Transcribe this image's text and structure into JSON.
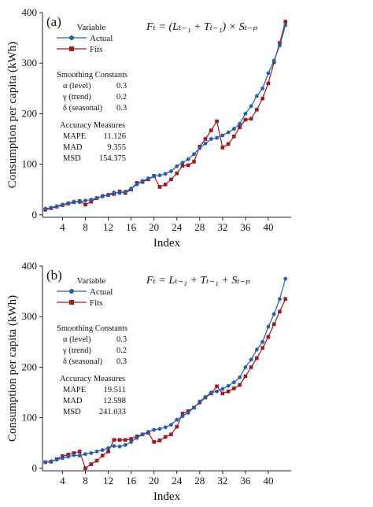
{
  "chart_data": [
    {
      "type": "line",
      "panel_label": "(a)",
      "formula": "Fₜ = (Lₜ₋₁ + Tₜ₋₁) × Sₜ₋ₚ",
      "xlabel": "Index",
      "ylabel": "Consumption per capita (kWh)",
      "xticks": [
        4,
        8,
        12,
        16,
        20,
        24,
        28,
        32,
        36,
        40
      ],
      "yticks": [
        0,
        100,
        200,
        300,
        400
      ],
      "xlim": [
        0.5,
        44
      ],
      "ylim": [
        -5,
        400
      ],
      "legend": {
        "title": "Variable",
        "placement": "top-left",
        "entries": [
          {
            "name": "Actual",
            "color": "#1f5fb8",
            "marker": "circle"
          },
          {
            "name": "Fits",
            "color": "#a3171e",
            "marker": "square"
          }
        ]
      },
      "smoothing": {
        "title": "Smoothing Constants",
        "rows": [
          {
            "label": "α (level)",
            "value": "0.3"
          },
          {
            "label": "γ (trend)",
            "value": "0.2"
          },
          {
            "label": "δ (seasonal)",
            "value": "0.3"
          }
        ]
      },
      "accuracy": {
        "title": "Accuracy Measures",
        "rows": [
          {
            "label": "MAPE",
            "value": "11.126"
          },
          {
            "label": "MAD",
            "value": "9.355"
          },
          {
            "label": "MSD",
            "value": "154.375"
          }
        ]
      },
      "x": [
        1,
        2,
        3,
        4,
        5,
        6,
        7,
        8,
        9,
        10,
        11,
        12,
        13,
        14,
        15,
        16,
        17,
        18,
        19,
        20,
        21,
        22,
        23,
        24,
        25,
        26,
        27,
        28,
        29,
        30,
        31,
        32,
        33,
        34,
        35,
        36,
        37,
        38,
        39,
        40,
        41,
        42,
        43
      ],
      "series": [
        {
          "name": "Actual",
          "color": "#1f5fb8",
          "marker": "circle",
          "values": [
            12,
            14,
            17,
            20,
            23,
            26,
            25,
            28,
            30,
            33,
            36,
            40,
            44,
            43,
            46,
            52,
            60,
            67,
            72,
            76,
            78,
            81,
            86,
            96,
            103,
            110,
            120,
            132,
            141,
            150,
            152,
            157,
            163,
            170,
            180,
            200,
            215,
            235,
            250,
            280,
            305,
            335,
            375
          ]
        },
        {
          "name": "Fits",
          "color": "#a3171e",
          "marker": "square",
          "values": [
            10,
            13,
            16,
            19,
            22,
            25,
            27,
            20,
            26,
            33,
            37,
            39,
            41,
            46,
            43,
            50,
            63,
            65,
            70,
            77,
            55,
            60,
            70,
            82,
            97,
            98,
            105,
            135,
            150,
            167,
            185,
            133,
            140,
            155,
            173,
            188,
            190,
            208,
            230,
            260,
            302,
            340,
            382
          ]
        }
      ]
    },
    {
      "type": "line",
      "panel_label": "(b)",
      "formula": "Fₜ = Lₜ₋₁ + Tₜ₋₁ + Sₜ₋ₚ",
      "xlabel": "Index",
      "ylabel": "Consumption per capita (kWh)",
      "xticks": [
        4,
        8,
        12,
        16,
        20,
        24,
        28,
        32,
        36,
        40
      ],
      "yticks": [
        0,
        100,
        200,
        300,
        400
      ],
      "xlim": [
        0.5,
        44
      ],
      "ylim": [
        -5,
        400
      ],
      "legend": {
        "title": "Variable",
        "placement": "top-left",
        "entries": [
          {
            "name": "Actual",
            "color": "#1f5fb8",
            "marker": "circle"
          },
          {
            "name": "Fits",
            "color": "#a3171e",
            "marker": "square"
          }
        ]
      },
      "smoothing": {
        "title": "Smoothing Constants",
        "rows": [
          {
            "label": "α (level)",
            "value": "0.3"
          },
          {
            "label": "γ (trend)",
            "value": "0.2"
          },
          {
            "label": "δ (seasonal)",
            "value": "0.3"
          }
        ]
      },
      "accuracy": {
        "title": "Accuracy Measures",
        "rows": [
          {
            "label": "MAPE",
            "value": "19.511"
          },
          {
            "label": "MAD",
            "value": "12.598"
          },
          {
            "label": "MSD",
            "value": "241.033"
          }
        ]
      },
      "x": [
        1,
        2,
        3,
        4,
        5,
        6,
        7,
        8,
        9,
        10,
        11,
        12,
        13,
        14,
        15,
        16,
        17,
        18,
        19,
        20,
        21,
        22,
        23,
        24,
        25,
        26,
        27,
        28,
        29,
        30,
        31,
        32,
        33,
        34,
        35,
        36,
        37,
        38,
        39,
        40,
        41,
        42,
        43
      ],
      "series": [
        {
          "name": "Actual",
          "color": "#1f5fb8",
          "marker": "circle",
          "values": [
            12,
            14,
            17,
            20,
            23,
            26,
            25,
            28,
            30,
            33,
            36,
            40,
            44,
            43,
            46,
            52,
            60,
            67,
            72,
            76,
            78,
            81,
            86,
            96,
            103,
            110,
            120,
            132,
            141,
            150,
            152,
            157,
            163,
            170,
            180,
            200,
            215,
            235,
            250,
            280,
            305,
            335,
            375
          ]
        },
        {
          "name": "Fits",
          "color": "#a3171e",
          "marker": "square",
          "values": [
            12,
            13,
            18,
            24,
            27,
            30,
            33,
            0,
            8,
            15,
            25,
            33,
            56,
            56,
            56,
            58,
            63,
            67,
            70,
            52,
            55,
            62,
            67,
            82,
            108,
            113,
            120,
            130,
            140,
            148,
            162,
            148,
            152,
            158,
            165,
            182,
            200,
            218,
            238,
            260,
            285,
            310,
            335
          ]
        }
      ]
    }
  ]
}
